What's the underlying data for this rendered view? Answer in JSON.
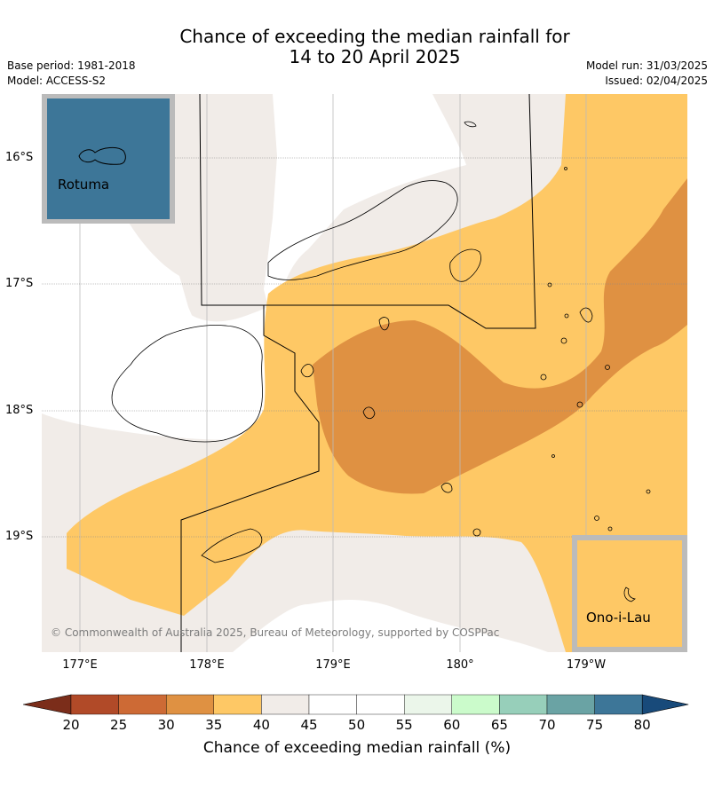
{
  "title": {
    "line1": "Chance of exceeding the median rainfall for",
    "line2": "14 to 20 April 2025"
  },
  "meta": {
    "base_period": "Base period: 1981-2018",
    "model": "Model: ACCESS-S2",
    "model_run": "Model run: 31/03/2025",
    "issued": "Issued: 02/04/2025"
  },
  "map": {
    "longitude_labels": [
      "177°E",
      "178°E",
      "179°E",
      "180°",
      "179°W"
    ],
    "latitude_labels": [
      "16°S",
      "17°S",
      "18°S",
      "19°S"
    ],
    "copyright": "© Commonwealth of Australia 2025, Bureau of Meteorology, supported by COSPPac",
    "insets": [
      {
        "name": "Rotuma",
        "fill_color": "#3d7698"
      },
      {
        "name": "Ono-i-Lau",
        "fill_color": "#fec865"
      }
    ],
    "region_colors": {
      "40-45": "#f1ece8",
      "35-40": "#fec865",
      "30-35": "#df9142"
    }
  },
  "colorbar": {
    "label": "Chance of exceeding median rainfall (%)",
    "ticks": [
      "20",
      "25",
      "30",
      "35",
      "40",
      "45",
      "50",
      "55",
      "60",
      "65",
      "70",
      "75",
      "80"
    ],
    "colors": [
      "#7b2d1a",
      "#b14a28",
      "#cd6a35",
      "#df9142",
      "#fec865",
      "#f1ece8",
      "#ffffff",
      "#ffffff",
      "#ebf6ea",
      "#cbfbcb",
      "#97cfba",
      "#6aa3a4",
      "#3d7698",
      "#184a7a"
    ]
  }
}
